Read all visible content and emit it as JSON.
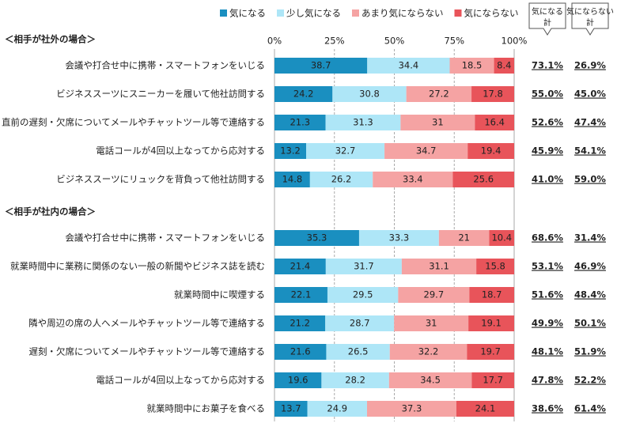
{
  "chart_data": {
    "type": "stacked-bar",
    "orientation": "horizontal",
    "xlim": [
      0,
      100
    ],
    "xticks": [
      {
        "value": 0,
        "label": "0%"
      },
      {
        "value": 25,
        "label": "25%"
      },
      {
        "value": 50,
        "label": "50%"
      },
      {
        "value": 75,
        "label": "75%"
      },
      {
        "value": 100,
        "label": "100%"
      }
    ],
    "grid": true,
    "legend": [
      {
        "name": "気になる",
        "color": "#1a8fc0"
      },
      {
        "name": "少し気になる",
        "color": "#aee6f7"
      },
      {
        "name": "あまり気にならない",
        "color": "#f5a3a3"
      },
      {
        "name": "気にならない",
        "color": "#e8545a"
      }
    ],
    "summary_headers": [
      [
        "気になる",
        "計"
      ],
      [
        "気にならない",
        "計"
      ]
    ],
    "groups": [
      {
        "label": "＜相手が社外の場合＞",
        "categories": [
          "会議や打合せ中に携帯・スマートフォンをいじる",
          "ビジネススーツにスニーカーを履いて他社訪問する",
          "直前の遅刻・欠席についてメールやチャットツール等で連絡する",
          "電話コールが4回以上なってから応対する",
          "ビジネススーツにリュックを背負って他社訪問する"
        ],
        "series": [
          {
            "values": [
              38.7,
              24.2,
              21.3,
              13.2,
              14.8
            ]
          },
          {
            "values": [
              34.4,
              30.8,
              31.3,
              32.7,
              26.2
            ]
          },
          {
            "values": [
              18.5,
              27.2,
              31.0,
              34.7,
              33.4
            ]
          },
          {
            "values": [
              8.4,
              17.8,
              16.4,
              19.4,
              25.6
            ]
          }
        ],
        "summary": [
          {
            "values": [
              73.1,
              55.0,
              52.6,
              45.9,
              41.0
            ],
            "value_labels": [
              "73.1%",
              "55.0%",
              "52.6%",
              "45.9%",
              "41.0%"
            ]
          },
          {
            "values": [
              26.9,
              45.0,
              47.4,
              54.1,
              59.0
            ],
            "value_labels": [
              "26.9%",
              "45.0%",
              "47.4%",
              "54.1%",
              "59.0%"
            ]
          }
        ]
      },
      {
        "label": "＜相手が社内の場合＞",
        "categories": [
          "会議や打合せ中に携帯・スマートフォンをいじる",
          "就業時間中に業務に関係のない一般の新聞やビジネス誌を読む",
          "就業時間中に喫煙する",
          "隣や周辺の席の人へメールやチャットツール等で連絡する",
          "遅刻・欠席についてメールやチャットツール等で連絡する",
          "電話コールが4回以上なってから応対する",
          "就業時間中にお菓子を食べる"
        ],
        "series": [
          {
            "values": [
              35.3,
              21.4,
              22.1,
              21.2,
              21.6,
              19.6,
              13.7
            ]
          },
          {
            "values": [
              33.3,
              31.7,
              29.5,
              28.7,
              26.5,
              28.2,
              24.9
            ]
          },
          {
            "values": [
              21.0,
              31.1,
              29.7,
              31.0,
              32.2,
              34.5,
              37.3
            ]
          },
          {
            "values": [
              10.4,
              15.8,
              18.7,
              19.1,
              19.7,
              17.7,
              24.1
            ]
          }
        ],
        "summary": [
          {
            "values": [
              68.6,
              53.1,
              51.6,
              49.9,
              48.1,
              47.8,
              38.6
            ],
            "value_labels": [
              "68.6%",
              "53.1%",
              "51.6%",
              "49.9%",
              "48.1%",
              "47.8%",
              "38.6%"
            ]
          },
          {
            "values": [
              31.4,
              46.9,
              48.4,
              50.1,
              51.9,
              52.2,
              61.4
            ],
            "value_labels": [
              "31.4%",
              "46.9%",
              "48.4%",
              "50.1%",
              "51.9%",
              "52.2%",
              "61.4%"
            ]
          }
        ]
      }
    ]
  }
}
